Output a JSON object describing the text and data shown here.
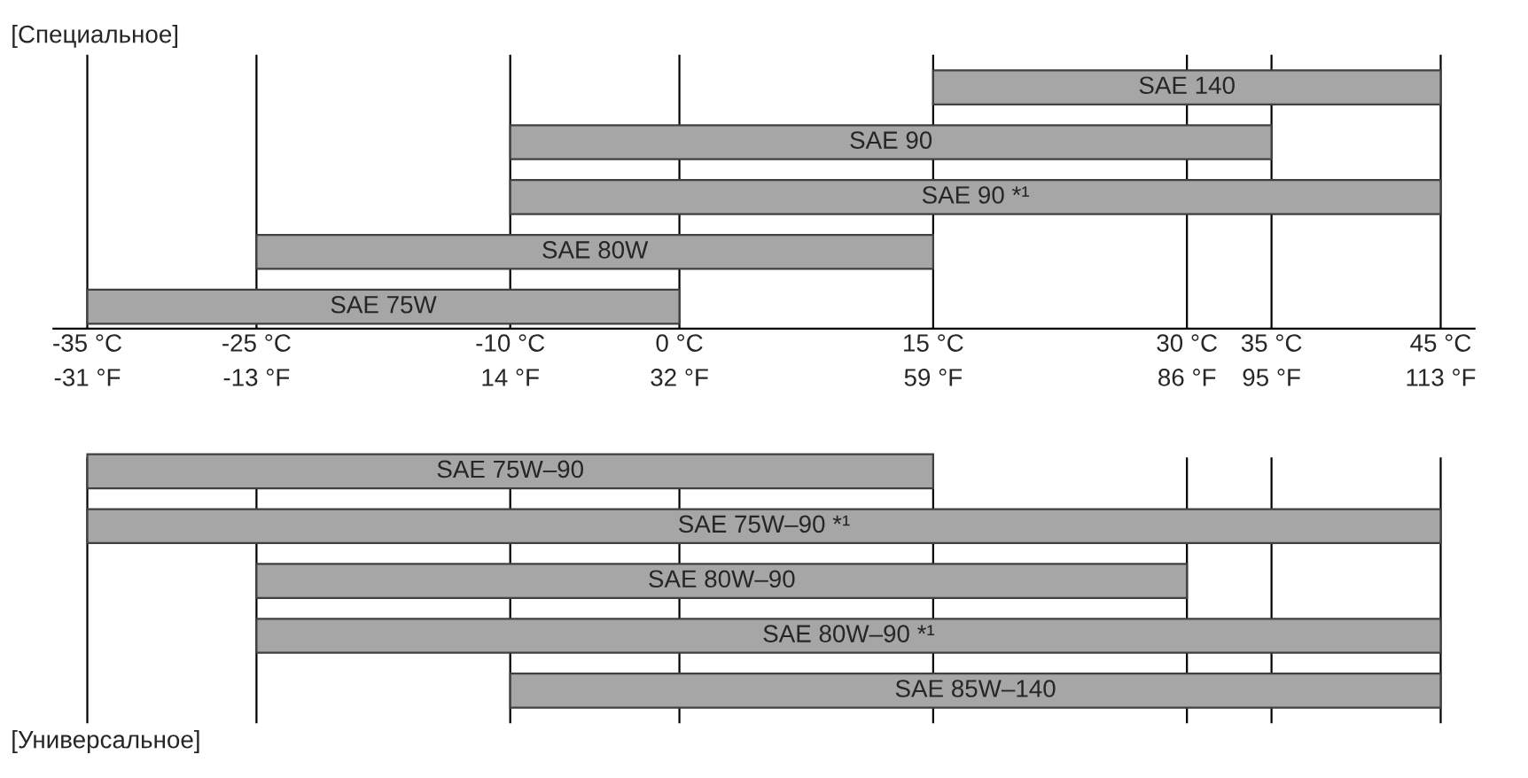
{
  "chart_data": {
    "type": "bar",
    "orientation": "horizontal",
    "title": "[Специальное]",
    "categories": [
      "SAE 140",
      "SAE 90",
      "SAE 90 *¹",
      "SAE 80W",
      "SAE 75W",
      null,
      null,
      "SAE 75W–90",
      "SAE 75W–90 *¹",
      "SAE 80W–90",
      "SAE 80W–90 *¹",
      "SAE 85W–140"
    ],
    "base": [
      15,
      -10,
      -10,
      -25,
      -35,
      null,
      null,
      -35,
      -35,
      -25,
      -25,
      -10
    ],
    "values": [
      30,
      45,
      55,
      40,
      35,
      null,
      null,
      50,
      80,
      55,
      70,
      55
    ],
    "color": "#a6a6a6",
    "xlim": [
      -37,
      47
    ],
    "xticks": [
      {
        "value": -35,
        "label": "-35 °C"
      },
      {
        "value": -25,
        "label": "-25 °C"
      },
      {
        "value": -10,
        "label": "-10 °C"
      },
      {
        "value": 0,
        "label": "0 °C"
      },
      {
        "value": 15,
        "label": "15 °C"
      },
      {
        "value": 30,
        "label": "30 °C"
      },
      {
        "value": 35,
        "label": "35 °C"
      },
      {
        "value": 45,
        "label": "45 °C"
      }
    ],
    "x2lim": [
      -34.6,
      116.6
    ],
    "x2ticks": [
      {
        "value": -31,
        "label": "-31 °F"
      },
      {
        "value": -13,
        "label": "-13 °F"
      },
      {
        "value": 14,
        "label": "14 °F"
      },
      {
        "value": 32,
        "label": "32 °F"
      },
      {
        "value": 59,
        "label": "59 °F"
      },
      {
        "value": 86,
        "label": "86 °F"
      },
      {
        "value": 95,
        "label": "95 °F"
      },
      {
        "value": 113,
        "label": "113 °F"
      }
    ],
    "grid": "x",
    "annotations": [
      "[Универсальное]"
    ]
  }
}
